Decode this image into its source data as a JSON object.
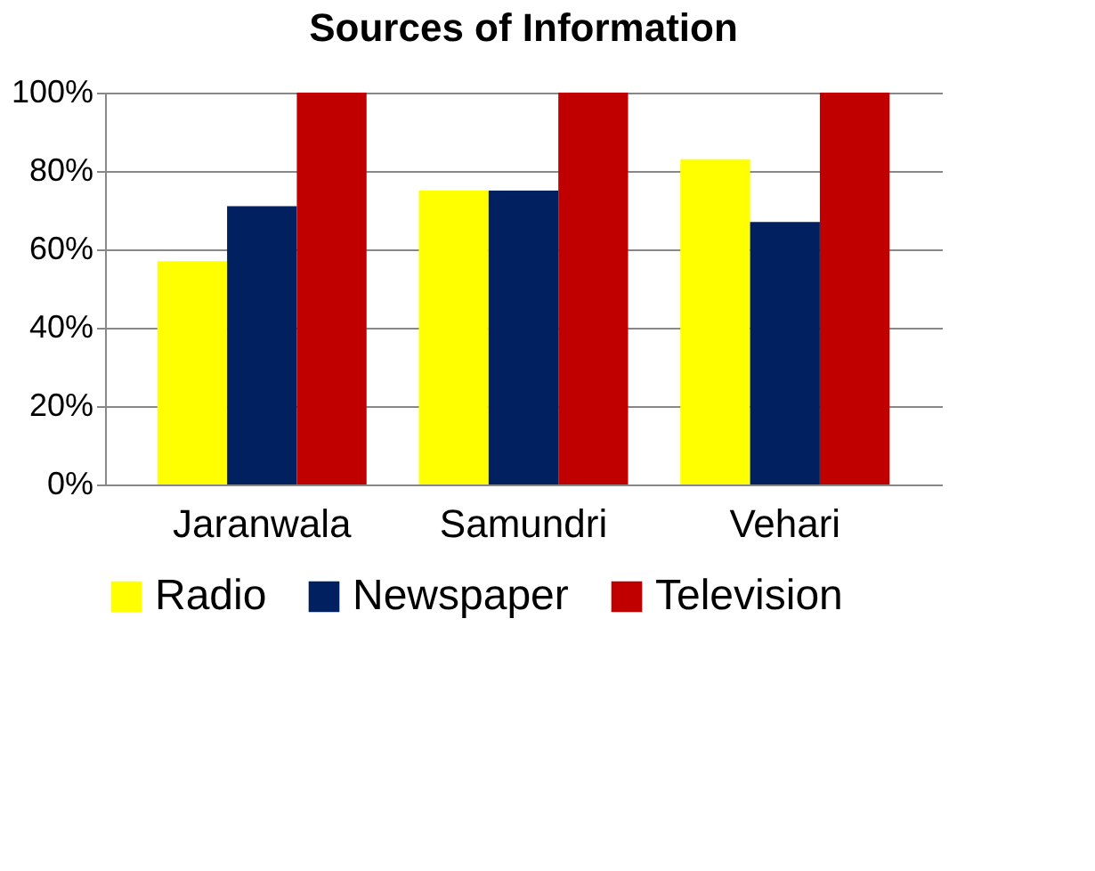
{
  "chart_data": {
    "type": "bar",
    "title": "Sources of Information",
    "categories": [
      "Jaranwala",
      "Samundri",
      "Vehari"
    ],
    "series": [
      {
        "name": "Radio",
        "color": "#ffff00",
        "values": [
          57,
          75,
          83
        ]
      },
      {
        "name": "Newspaper",
        "color": "#002060",
        "values": [
          71,
          75,
          67
        ]
      },
      {
        "name": "Television",
        "color": "#c00000",
        "values": [
          100,
          100,
          100
        ]
      }
    ],
    "ylim": [
      0,
      100
    ],
    "yticks": [
      {
        "value": 0,
        "label": "0%"
      },
      {
        "value": 20,
        "label": "20%"
      },
      {
        "value": 40,
        "label": "40%"
      },
      {
        "value": 60,
        "label": "60%"
      },
      {
        "value": 80,
        "label": "80%"
      },
      {
        "value": 100,
        "label": "100%"
      }
    ],
    "grid": "y",
    "legend": "bottom"
  }
}
